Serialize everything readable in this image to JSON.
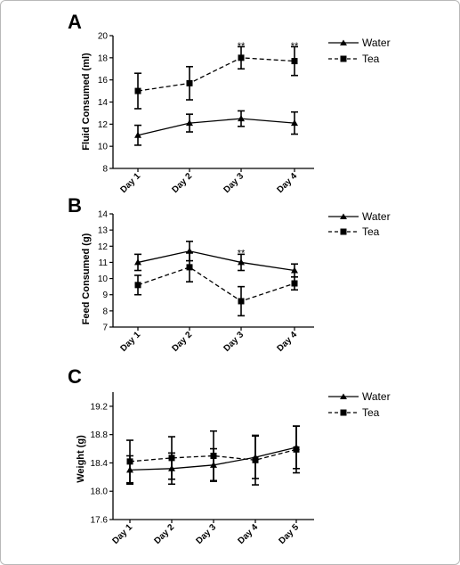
{
  "chart_data": [
    {
      "panel": "A",
      "type": "line",
      "ylabel": "Fluid Consumed (ml)",
      "ylim": [
        8,
        20
      ],
      "yticks": [
        8,
        10,
        12,
        14,
        16,
        18,
        20
      ],
      "yticks_text": [
        "8",
        "10",
        "12",
        "14",
        "16",
        "18",
        "20"
      ],
      "categories": [
        "Day 1",
        "Day 2",
        "Day 3",
        "Day 4"
      ],
      "series": [
        {
          "name": "Water",
          "marker": "triangle",
          "dash": "solid",
          "values": [
            11.0,
            12.1,
            12.5,
            12.1
          ],
          "errors": [
            0.9,
            0.8,
            0.7,
            1.0
          ]
        },
        {
          "name": "Tea",
          "marker": "square",
          "dash": "dashed",
          "values": [
            15.0,
            15.7,
            18.0,
            17.7
          ],
          "errors": [
            1.6,
            1.5,
            1.0,
            1.3
          ]
        }
      ],
      "annotations": [
        {
          "category": "Day 3",
          "y": 19.1,
          "text": "**"
        },
        {
          "category": "Day 4",
          "y": 19.1,
          "text": "**"
        }
      ],
      "legend_position": "top-right"
    },
    {
      "panel": "B",
      "type": "line",
      "ylabel": "Feed Consumed (g)",
      "ylim": [
        7,
        14
      ],
      "yticks": [
        7,
        8,
        9,
        10,
        11,
        12,
        13,
        14
      ],
      "yticks_text": [
        "7",
        "8",
        "9",
        "10",
        "11",
        "12",
        "13",
        "14"
      ],
      "categories": [
        "Day 1",
        "Day 2",
        "Day 3",
        "Day 4"
      ],
      "series": [
        {
          "name": "Water",
          "marker": "triangle",
          "dash": "solid",
          "values": [
            11.0,
            11.7,
            11.0,
            10.5
          ],
          "errors": [
            0.5,
            0.6,
            0.5,
            0.4
          ]
        },
        {
          "name": "Tea",
          "marker": "square",
          "dash": "dashed",
          "values": [
            9.6,
            10.7,
            8.6,
            9.7
          ],
          "errors": [
            0.6,
            0.9,
            0.9,
            0.4
          ]
        }
      ],
      "annotations": [
        {
          "category": "Day 3",
          "y": 11.6,
          "text": "**"
        }
      ],
      "legend_position": "top-right"
    },
    {
      "panel": "C",
      "type": "line",
      "ylabel": "Weight (g)",
      "ylim": [
        17.6,
        19.4
      ],
      "yticks": [
        17.6,
        18.0,
        18.4,
        18.8,
        19.2
      ],
      "yticks_text": [
        "17.6",
        "18.0",
        "18.4",
        "18.8",
        "19.2"
      ],
      "categories": [
        "Day 1",
        "Day 2",
        "Day 3",
        "Day 4",
        "Day 5"
      ],
      "series": [
        {
          "name": "Water",
          "marker": "triangle",
          "dash": "solid",
          "values": [
            18.3,
            18.32,
            18.37,
            18.48,
            18.62
          ],
          "errors": [
            0.2,
            0.22,
            0.23,
            0.3,
            0.3
          ]
        },
        {
          "name": "Tea",
          "marker": "square",
          "dash": "dashed",
          "values": [
            18.42,
            18.47,
            18.5,
            18.44,
            18.59
          ],
          "errors": [
            0.3,
            0.3,
            0.35,
            0.35,
            0.33
          ]
        }
      ],
      "annotations": [],
      "legend_position": "top-right"
    }
  ]
}
